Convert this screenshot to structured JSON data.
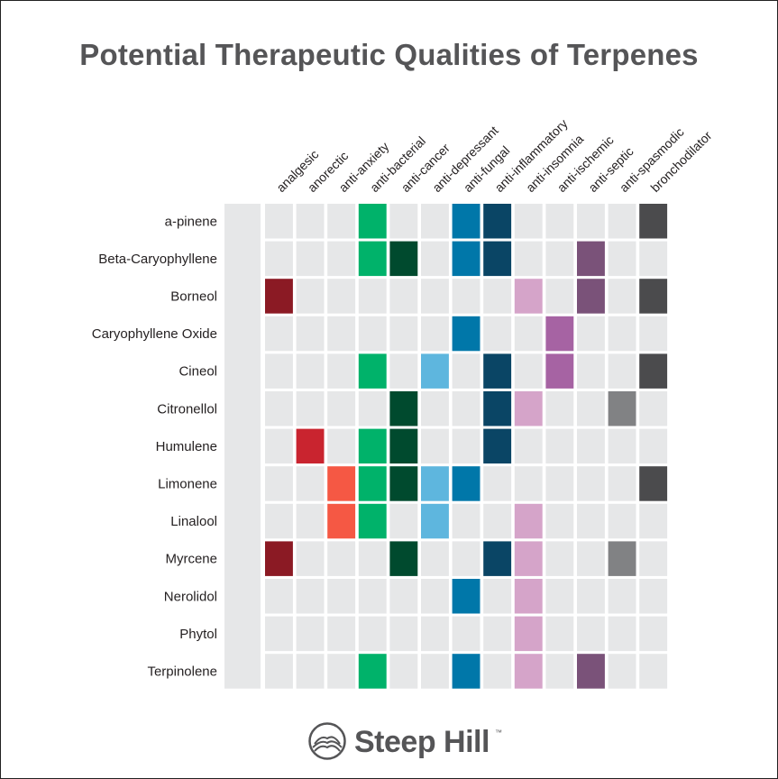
{
  "brand": {
    "name": "Steep Hill",
    "tm": "™"
  },
  "chart_data": {
    "type": "heatmap",
    "title": "Potential Therapeutic Qualities of Terpenes",
    "columns": [
      "analgesic",
      "anorectic",
      "anti-anxiety",
      "anti-bacterial",
      "anti-cancer",
      "anti-depressant",
      "anti-fungal",
      "anti-inflammatory",
      "anti-insomnia",
      "anti-ischemic",
      "anti-septic",
      "anti-spasmodic",
      "bronchodilator"
    ],
    "rows": [
      "a-pinene",
      "Beta-Caryophyllene",
      "Borneol",
      "Caryophyllene Oxide",
      "Cineol",
      "Citronellol",
      "Humulene",
      "Limonene",
      "Linalool",
      "Myrcene",
      "Nerolidol",
      "Phytol",
      "Terpinolene"
    ],
    "column_colors": {
      "analgesic": "#8b1a24",
      "anorectic": "#c9242f",
      "anti-anxiety": "#f55844",
      "anti-bacterial": "#00b26a",
      "anti-cancer": "#004a2e",
      "anti-depressant": "#5eb6de",
      "anti-fungal": "#0077a9",
      "anti-inflammatory": "#0a4565",
      "anti-insomnia": "#d5a4c9",
      "anti-ischemic": "#a663a3",
      "anti-septic": "#7a5279",
      "anti-spasmodic": "#818284",
      "bronchodilator": "#4b4b4d"
    },
    "empty_color": "#e6e7e8",
    "values": [
      [
        0,
        0,
        0,
        1,
        0,
        0,
        1,
        1,
        0,
        0,
        0,
        0,
        1
      ],
      [
        0,
        0,
        0,
        1,
        1,
        0,
        1,
        1,
        0,
        0,
        1,
        0,
        0
      ],
      [
        1,
        0,
        0,
        0,
        0,
        0,
        0,
        0,
        1,
        0,
        1,
        0,
        1
      ],
      [
        0,
        0,
        0,
        0,
        0,
        0,
        1,
        0,
        0,
        1,
        0,
        0,
        0
      ],
      [
        0,
        0,
        0,
        1,
        0,
        1,
        0,
        1,
        0,
        1,
        0,
        0,
        1
      ],
      [
        0,
        0,
        0,
        0,
        1,
        0,
        0,
        1,
        1,
        0,
        0,
        1,
        0
      ],
      [
        0,
        1,
        0,
        1,
        1,
        0,
        0,
        1,
        0,
        0,
        0,
        0,
        0
      ],
      [
        0,
        0,
        1,
        1,
        1,
        1,
        1,
        0,
        0,
        0,
        0,
        0,
        1
      ],
      [
        0,
        0,
        1,
        1,
        0,
        1,
        0,
        0,
        1,
        0,
        0,
        0,
        0
      ],
      [
        1,
        0,
        0,
        0,
        1,
        0,
        0,
        1,
        1,
        0,
        0,
        1,
        0
      ],
      [
        0,
        0,
        0,
        0,
        0,
        0,
        1,
        0,
        1,
        0,
        0,
        0,
        0
      ],
      [
        0,
        0,
        0,
        0,
        0,
        0,
        0,
        0,
        1,
        0,
        0,
        0,
        0
      ],
      [
        0,
        0,
        0,
        1,
        0,
        0,
        1,
        0,
        1,
        0,
        1,
        0,
        0
      ]
    ]
  }
}
